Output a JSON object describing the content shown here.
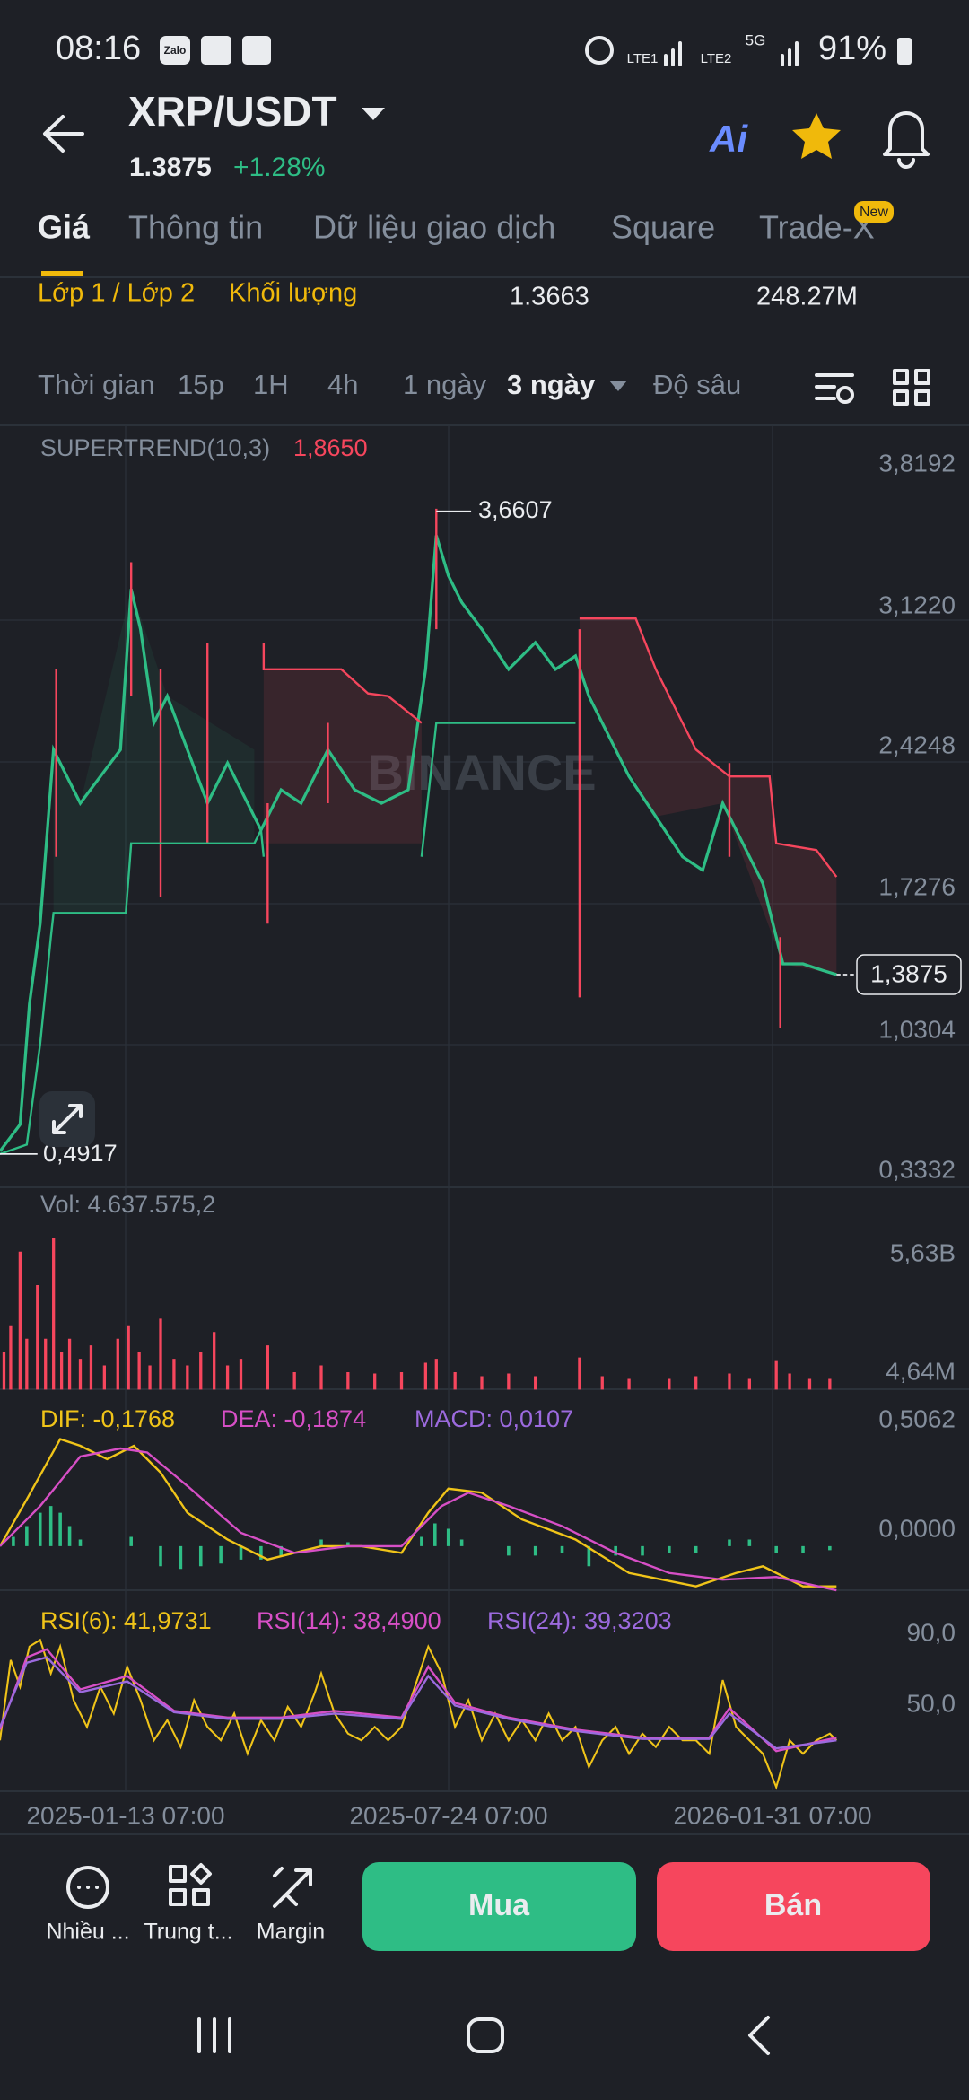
{
  "status_bar": {
    "time": "08:16",
    "zalo": "Zalo",
    "lte1": "LTE1",
    "lte2": "LTE2",
    "five_g": "5G",
    "battery": "91%"
  },
  "header": {
    "pair": "XRP/USDT",
    "price": "1.3875",
    "change": "+1.28%",
    "ai": "Ai"
  },
  "tabs": [
    "Giá",
    "Thông tin",
    "Dữ liệu giao dịch",
    "Square",
    "Trade-X"
  ],
  "new_badge": "New",
  "order_row": {
    "layers": "Lớp 1 / Lớp 2",
    "volume_label": "Khối lượng",
    "price": "1.3663",
    "volume": "248.27M"
  },
  "intervals": {
    "label": "Thời gian",
    "options": [
      "15p",
      "1H",
      "4h",
      "1 ngày",
      "3 ngày"
    ],
    "depth": "Độ sâu"
  },
  "main_chart": {
    "indicator": "SUPERTREND(10,3)",
    "indicator_value": "1,8650",
    "axis_labels": [
      "3,8192",
      "3,1220",
      "2,4248",
      "1,7276",
      "1,0304",
      "0,3332"
    ],
    "high_label": "3,6607",
    "low_label": "0,4917",
    "last_price": "1,3875",
    "watermark": "BINANCE"
  },
  "volume": {
    "label": "Vol: 4.637.575,2",
    "axis_labels": [
      "5,63B",
      "4,64M"
    ]
  },
  "macd": {
    "dif": "DIF: -0,1768",
    "dea": "DEA: -0,1874",
    "macd": "MACD: 0,0107",
    "axis_labels": [
      "0,5062",
      "0,0000"
    ]
  },
  "rsi": {
    "rsi6": "RSI(6): 41,9731",
    "rsi14": "RSI(14): 38,4900",
    "rsi24": "RSI(24): 39,3203",
    "axis_labels": [
      "90,0",
      "50,0"
    ]
  },
  "x_labels": [
    "2025-01-13 07:00",
    "2025-07-24 07:00",
    "2026-01-31 07:00"
  ],
  "bottom_bar": {
    "tools": [
      "Nhiều ...",
      "Trung t...",
      "Margin"
    ],
    "buy": "Mua",
    "sell": "Bán"
  }
}
